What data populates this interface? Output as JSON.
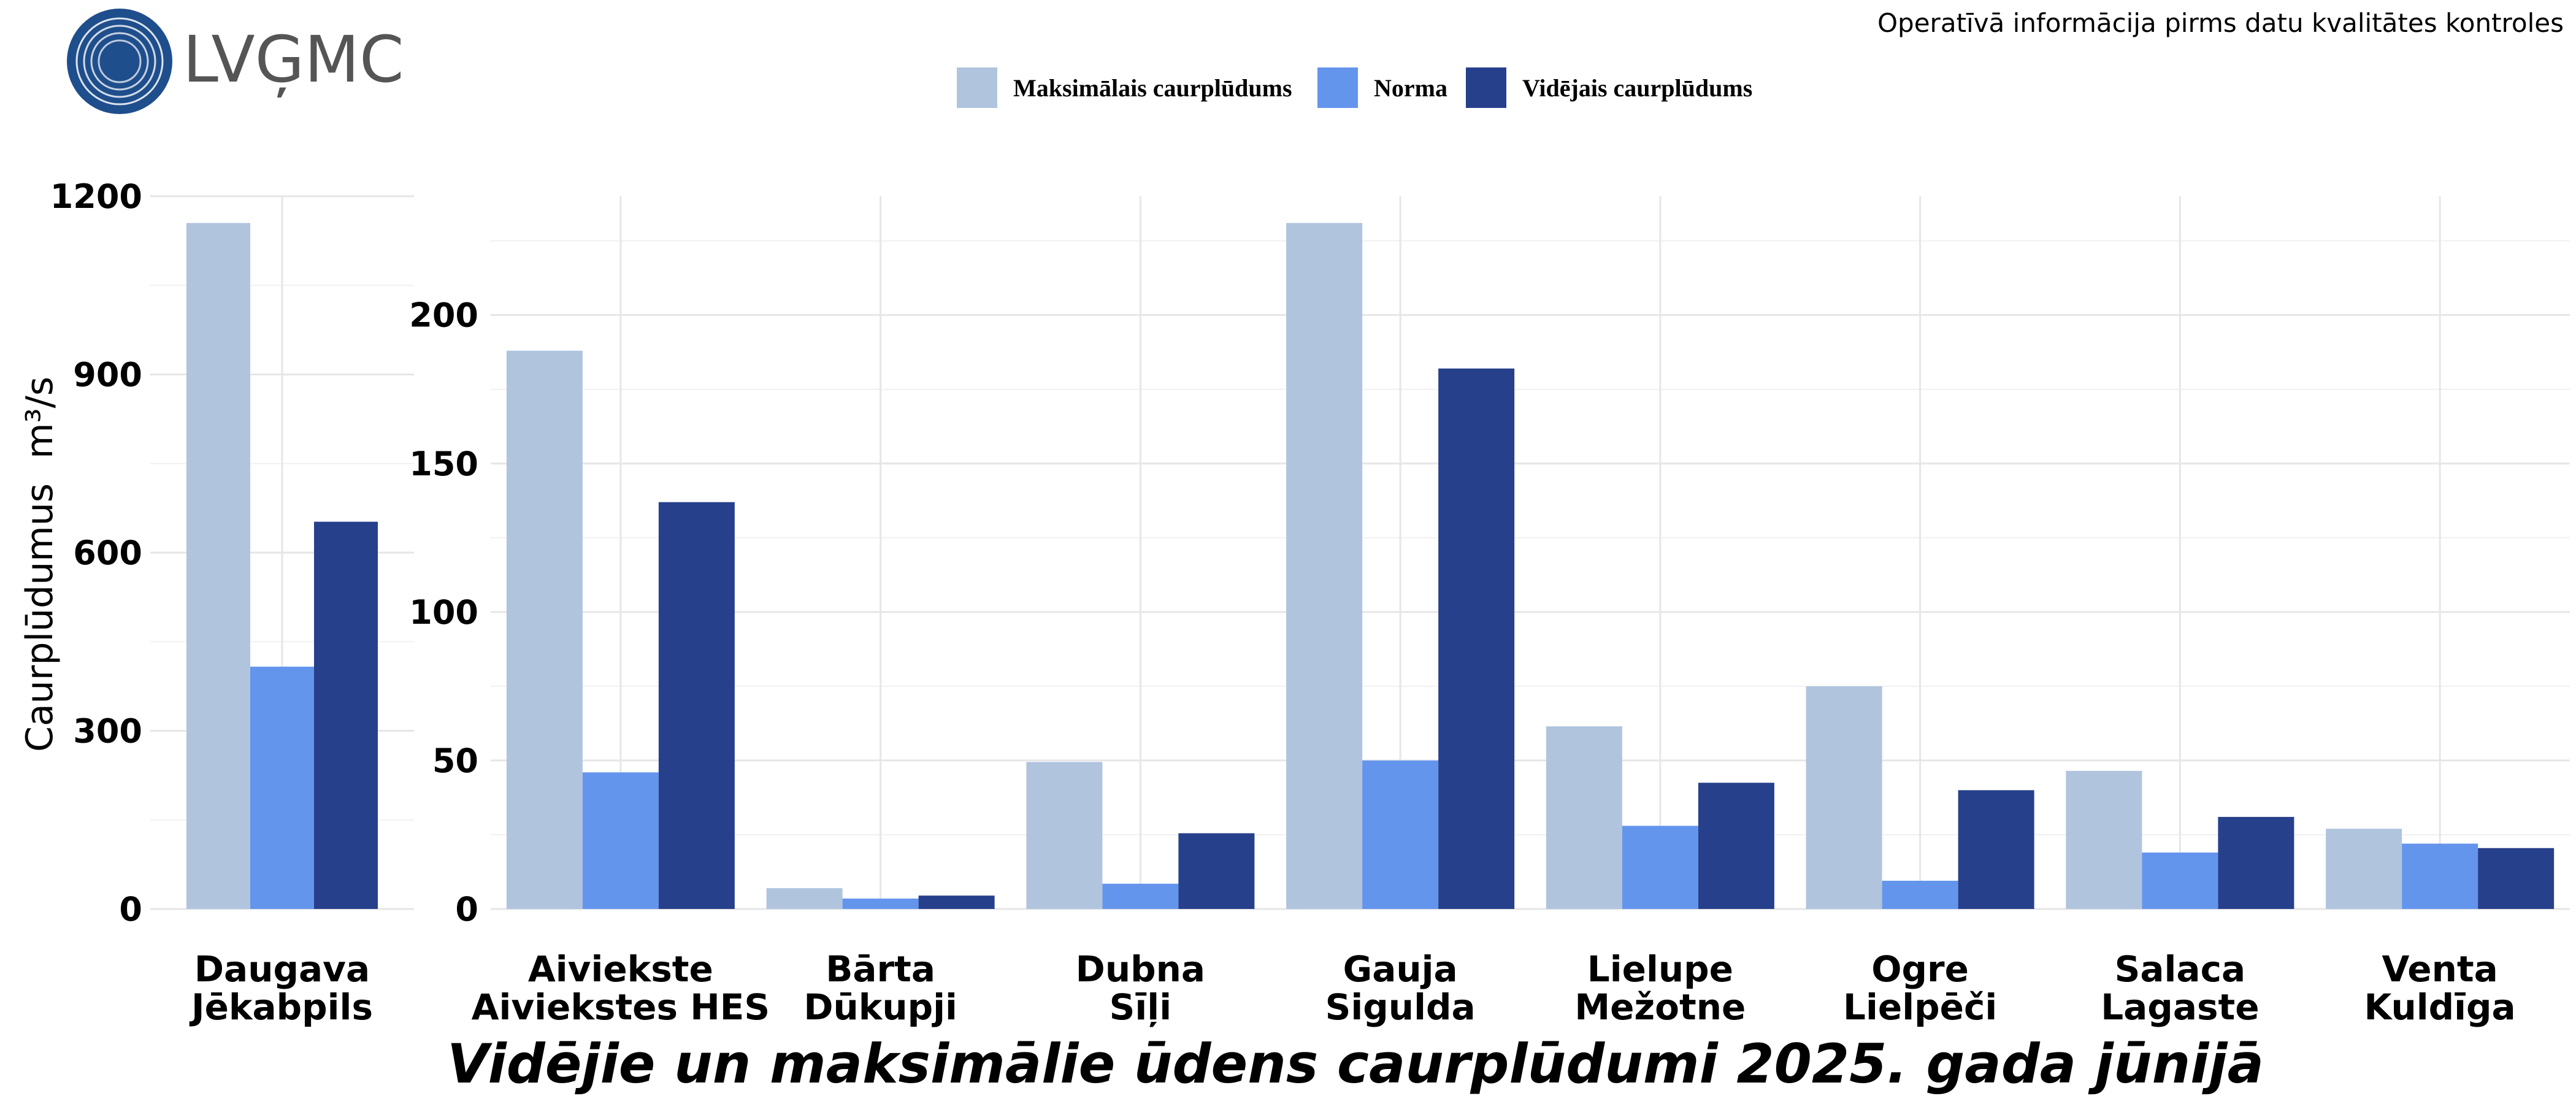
{
  "header": {
    "logo_text": "LVĢMC",
    "note": "Operatīvā informācija pirms datu kvalitātes kontroles"
  },
  "legend": [
    {
      "label": "Maksimālais caurplūdums",
      "color": "#b0c4de"
    },
    {
      "label": "Norma",
      "color": "#6495ed"
    },
    {
      "label": "Vidējais caurplūdums",
      "color": "#27408b"
    }
  ],
  "y_axis": {
    "label": "Caurplūdumus",
    "unit": "m³/s"
  },
  "title": "Vidējie un maksimālie ūdens caurplūdumi 2025. gada jūnijā",
  "chart_data": [
    {
      "type": "bar",
      "categories": [
        [
          "Daugava",
          "Jēkabpils"
        ]
      ],
      "series": [
        {
          "name": "Maksimālais caurplūdums",
          "color": "#b0c4de",
          "values": [
            1155
          ]
        },
        {
          "name": "Norma",
          "color": "#6495ed",
          "values": [
            408
          ]
        },
        {
          "name": "Vidējais caurplūdums",
          "color": "#27408b",
          "values": [
            652
          ]
        }
      ],
      "ylim": [
        0,
        1200
      ],
      "ticks": [
        0,
        300,
        600,
        900,
        1200
      ],
      "minor_ticks": [
        150,
        450,
        750,
        1050
      ],
      "grid": true
    },
    {
      "type": "bar",
      "categories": [
        [
          "Aiviekste",
          "Aiviekstes HES"
        ],
        [
          "Bārta",
          "Dūkupji"
        ],
        [
          "Dubna",
          "Sīļi"
        ],
        [
          "Gauja",
          "Sigulda"
        ],
        [
          "Lielupe",
          "Mežotne"
        ],
        [
          "Ogre",
          "Lielpēči"
        ],
        [
          "Salaca",
          "Lagaste"
        ],
        [
          "Venta",
          "Kuldīga"
        ]
      ],
      "series": [
        {
          "name": "Maksimālais caurplūdums",
          "color": "#b0c4de",
          "values": [
            188,
            7,
            49.5,
            231,
            61.5,
            75,
            46.5,
            27
          ]
        },
        {
          "name": "Norma",
          "color": "#6495ed",
          "values": [
            46,
            3.5,
            8.5,
            50,
            28,
            9.5,
            19,
            22
          ]
        },
        {
          "name": "Vidējais caurplūdums",
          "color": "#27408b",
          "values": [
            137,
            4.5,
            25.5,
            182,
            42.5,
            40,
            31,
            20.5
          ]
        }
      ],
      "ylim": [
        0,
        240
      ],
      "ticks": [
        0,
        50,
        100,
        150,
        200
      ],
      "minor_ticks": [
        25,
        75,
        125,
        175,
        225
      ],
      "grid": true
    }
  ]
}
